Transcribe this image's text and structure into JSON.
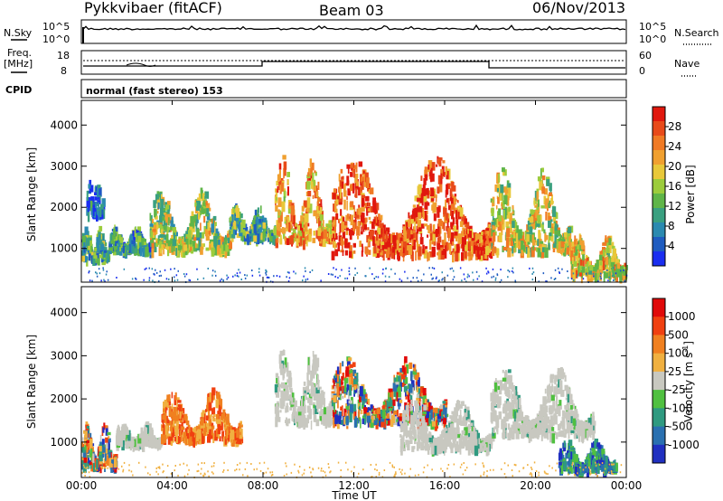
{
  "header": {
    "station": "Pykkvibaer (fitACF)",
    "beam": "Beam 03",
    "date": "06/Nov/2013"
  },
  "top_panels": {
    "nsky_label": "N.Sky",
    "nsky_ticks": [
      "10^5",
      "10^0"
    ],
    "nsearch_label": "N.Search",
    "nsearch_ticks": [
      "10^5",
      "10^0"
    ],
    "freq_label_1": "Freq.",
    "freq_label_2": "[MHz]",
    "freq_ticks": [
      "18",
      "8"
    ],
    "nave_label": "Nave",
    "nave_ticks": [
      "60",
      "0"
    ],
    "cpid_label": "CPID",
    "cpid_value": "normal (fast stereo) 153"
  },
  "chart_data": [
    {
      "type": "heatmap",
      "quantity": "Power",
      "ylabel": "Slant Range [km]",
      "ylim": [
        180,
        4600
      ],
      "yticks": [
        1000,
        2000,
        3000,
        4000
      ],
      "xlim_hours": [
        0,
        24
      ],
      "colorbar": {
        "label": "Power [dB]",
        "range": [
          0,
          32
        ],
        "ticks": [
          "4",
          "8",
          "12",
          "16",
          "20",
          "24",
          "28"
        ],
        "colors": [
          "#1a2ef0",
          "#1f5cc0",
          "#2b8ab0",
          "#3aa080",
          "#5fb548",
          "#9ccc3c",
          "#e8c83a",
          "#f0a030",
          "#f07a25",
          "#e84a1a",
          "#e0180e"
        ]
      },
      "echo_regions": [
        {
          "t0": 0.0,
          "t1": 1.2,
          "r0": 800,
          "r1": 1600,
          "level": 0.35
        },
        {
          "t0": 0.2,
          "t1": 0.9,
          "r0": 1900,
          "r1": 2800,
          "level": 0.15
        },
        {
          "t0": 1.2,
          "t1": 3.0,
          "r0": 1000,
          "r1": 1600,
          "level": 0.3
        },
        {
          "t0": 3.0,
          "t1": 6.5,
          "r0": 1000,
          "r1": 2500,
          "level": 0.5
        },
        {
          "t0": 6.5,
          "t1": 8.5,
          "r0": 1300,
          "r1": 2100,
          "level": 0.35
        },
        {
          "t0": 8.5,
          "t1": 11.0,
          "r0": 1200,
          "r1": 3300,
          "level": 0.7
        },
        {
          "t0": 11.0,
          "t1": 18.0,
          "r0": 900,
          "r1": 3300,
          "level": 0.85
        },
        {
          "t0": 18.0,
          "t1": 21.5,
          "r0": 1000,
          "r1": 3000,
          "level": 0.55
        },
        {
          "t0": 21.5,
          "t1": 24.0,
          "r0": 400,
          "r1": 1400,
          "level": 0.6
        }
      ]
    },
    {
      "type": "heatmap",
      "quantity": "Velocity",
      "ylabel": "Slant Range [km]",
      "ylim": [
        180,
        4600
      ],
      "yticks": [
        1000,
        2000,
        3000,
        4000
      ],
      "xlabel": "Time UT",
      "xticks": [
        "00:00",
        "04:00",
        "08:00",
        "12:00",
        "16:00",
        "20:00",
        "00:00"
      ],
      "xlim_hours": [
        0,
        24
      ],
      "colorbar": {
        "label": "Velocity [m s",
        "label_exp": "-1",
        "label_close": "]",
        "ticks": [
          "1000",
          "500",
          "100",
          "25",
          "-25",
          "-100",
          "-500",
          "-1000"
        ],
        "colors": [
          "#2030c0",
          "#2a70b0",
          "#2f9a80",
          "#50c040",
          "#c8c8c0",
          "#f0b040",
          "#f08020",
          "#f04010",
          "#e00a0a"
        ]
      },
      "echo_regions": [
        {
          "t0": 0.0,
          "t1": 1.5,
          "r0": 500,
          "r1": 1500,
          "v": "mixed"
        },
        {
          "t0": 1.5,
          "t1": 3.5,
          "r0": 1000,
          "r1": 1500,
          "v": "ground"
        },
        {
          "t0": 3.5,
          "t1": 7.0,
          "r0": 1100,
          "r1": 2300,
          "v": "away"
        },
        {
          "t0": 8.5,
          "t1": 11.0,
          "r0": 1500,
          "r1": 3200,
          "v": "ground"
        },
        {
          "t0": 11.0,
          "t1": 16.0,
          "r0": 1500,
          "r1": 3000,
          "v": "mixed"
        },
        {
          "t0": 14.0,
          "t1": 18.0,
          "r0": 900,
          "r1": 2000,
          "v": "ground"
        },
        {
          "t0": 18.0,
          "t1": 22.5,
          "r0": 1200,
          "r1": 2800,
          "v": "ground"
        },
        {
          "t0": 21.0,
          "t1": 23.5,
          "r0": 400,
          "r1": 1100,
          "v": "toward"
        }
      ]
    }
  ]
}
